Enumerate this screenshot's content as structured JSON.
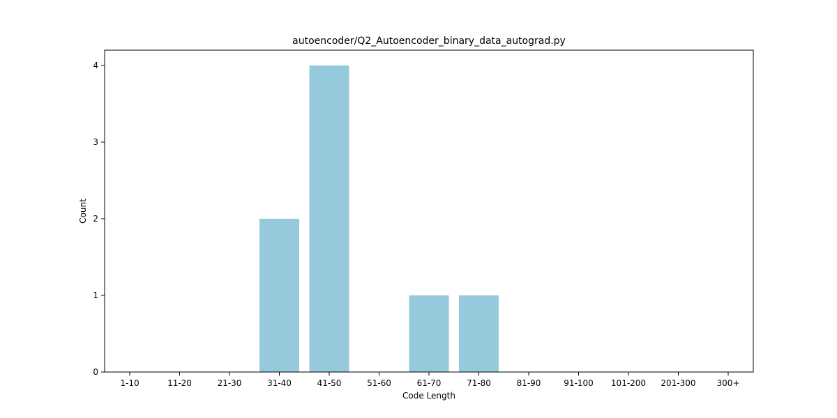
{
  "chart_data": {
    "type": "bar",
    "title": "autoencoder/Q2_Autoencoder_binary_data_autograd.py",
    "xlabel": "Code Length",
    "ylabel": "Count",
    "categories": [
      "1-10",
      "11-20",
      "21-30",
      "31-40",
      "41-50",
      "51-60",
      "61-70",
      "71-80",
      "81-90",
      "91-100",
      "101-200",
      "201-300",
      "300+"
    ],
    "values": [
      0,
      0,
      0,
      2,
      4,
      0,
      1,
      1,
      0,
      0,
      0,
      0,
      0
    ],
    "yticks": [
      0,
      1,
      2,
      3,
      4
    ],
    "ylim": [
      0,
      4.2
    ],
    "grid": false,
    "bar_color": "#96c9dc"
  }
}
